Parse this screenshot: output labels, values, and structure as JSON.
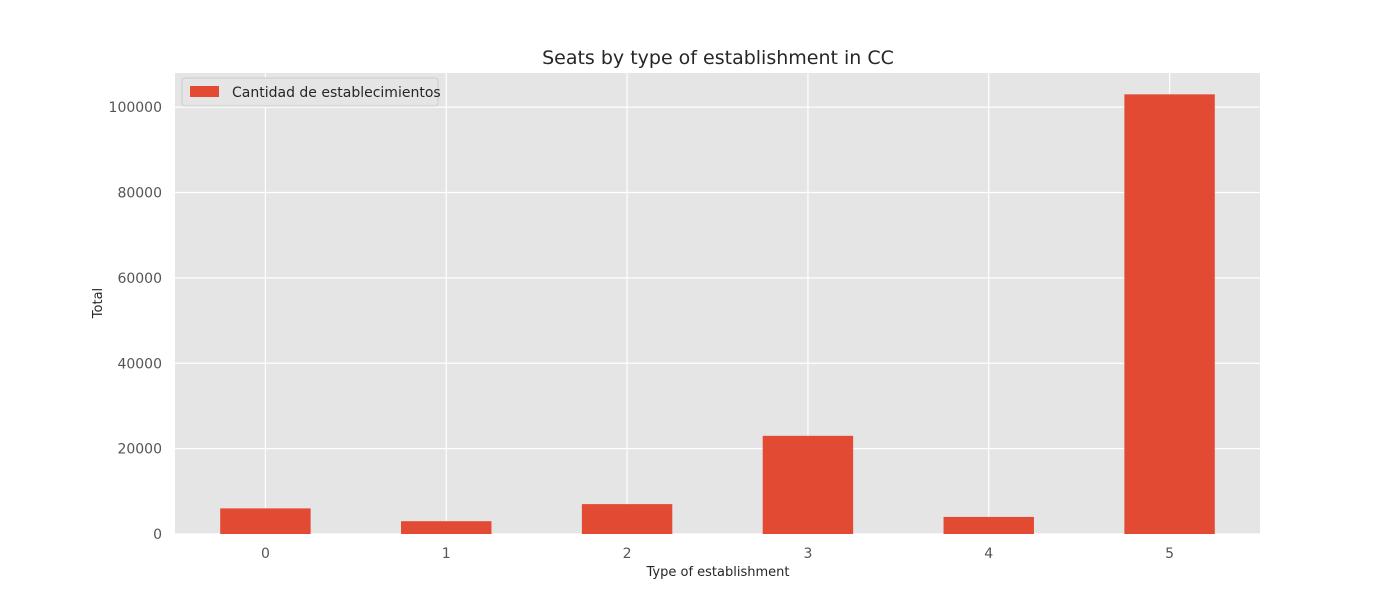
{
  "chart_data": {
    "type": "bar",
    "title": "Seats by type of establishment in CC",
    "xlabel": "Type of establishment",
    "ylabel": "Total",
    "categories": [
      "0",
      "1",
      "2",
      "3",
      "4",
      "5"
    ],
    "series": [
      {
        "name": "Cantidad de establecimientos",
        "values": [
          6000,
          3000,
          7000,
          23000,
          4000,
          103000
        ]
      }
    ],
    "ylim": [
      0,
      108000
    ],
    "yticks": [
      0,
      20000,
      40000,
      60000,
      80000,
      100000
    ],
    "ytick_labels": [
      "0",
      "20000",
      "40000",
      "60000",
      "80000",
      "100000"
    ],
    "grid": true,
    "legend_position": "top-left",
    "colors": {
      "bar": "#E24A33",
      "plot_background": "#E5E5E5",
      "grid": "#FFFFFF",
      "text": "#262626",
      "tick_text": "#555555"
    }
  }
}
